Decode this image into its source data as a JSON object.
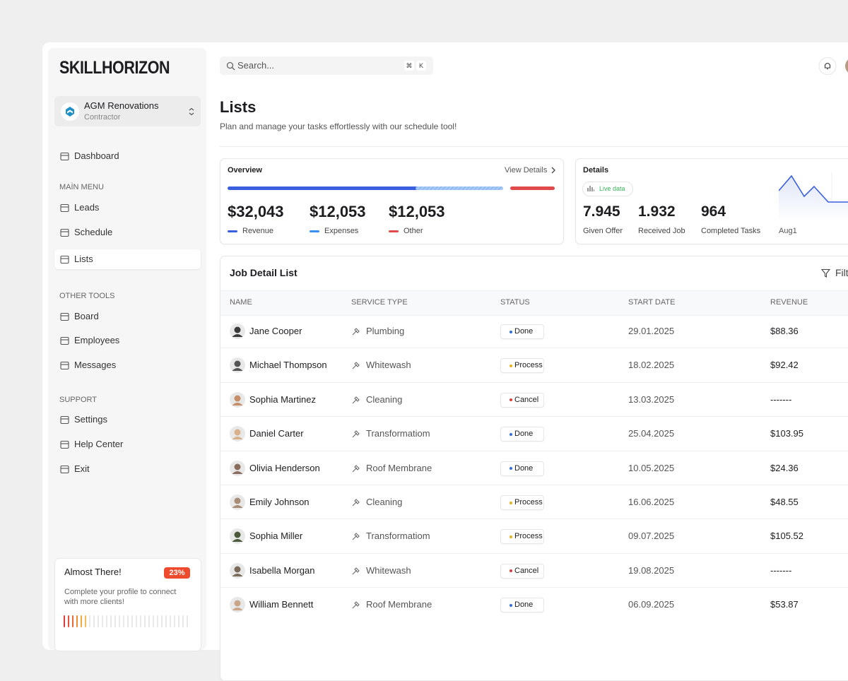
{
  "sidebar": {
    "logo": "SKILLHORIZON",
    "org": {
      "name": "AGM Renovations",
      "role": "Contractor"
    },
    "dashboard": "Dashboard",
    "sections": [
      {
        "title": "MAİN MENU",
        "items": [
          "Leads",
          "Schedule",
          "Lists"
        ]
      },
      {
        "title": "OTHER TOOLS",
        "items": [
          "Board",
          "Employees",
          "Messages"
        ]
      },
      {
        "title": "SUPPORT",
        "items": [
          "Settings",
          "Help Center",
          "Exit"
        ]
      }
    ],
    "promo": {
      "title": "Almost There!",
      "badge": "23%",
      "text_lines": [
        "Complete your profile to connect",
        "with more clients!"
      ]
    }
  },
  "search": {
    "placeholder": "Search...",
    "keys": [
      "⌘",
      "K"
    ]
  },
  "header": {
    "title": "Lists",
    "subtitle": "Plan and manage your tasks effortlessly with our schedule tool!"
  },
  "overview": {
    "title": "Overview",
    "link": "View Details",
    "stats": [
      {
        "value": "$32,043",
        "label": "Revenue",
        "color": "#3a5fde"
      },
      {
        "value": "$12,053",
        "label": "Expenses",
        "color": "#3a8ff0"
      },
      {
        "value": "$12,053",
        "label": "Other",
        "color": "#e04a4a"
      }
    ]
  },
  "details": {
    "title": "Details",
    "badge": "Live data",
    "stats": [
      {
        "value": "7.945",
        "label": "Given Offer"
      },
      {
        "value": "1.932",
        "label": "Received Job"
      },
      {
        "value": "964",
        "label": "Completed Tasks"
      }
    ],
    "chart_label": "Aug1"
  },
  "table": {
    "title": "Job Detail List",
    "filter": "Filter",
    "columns": [
      "NAME",
      "SERVICE TYPE",
      "STATUS",
      "START DATE",
      "REVENUE"
    ],
    "rows": [
      {
        "name": "Jane Cooper",
        "service": "Plumbing",
        "status": {
          "label": "Done",
          "color": "#2f6fe4"
        },
        "date": "29.01.2025",
        "revenue": "$88.36"
      },
      {
        "name": "Michael Thompson",
        "service": "Whitewash",
        "status": {
          "label": "Process",
          "color": "#e8b21c"
        },
        "date": "18.02.2025",
        "revenue": "$92.42"
      },
      {
        "name": "Sophia Martinez",
        "service": "Cleaning",
        "status": {
          "label": "Cancel",
          "color": "#e03a3a"
        },
        "date": "13.03.2025",
        "revenue": "-------"
      },
      {
        "name": "Daniel Carter",
        "service": "Transformatiom",
        "status": {
          "label": "Done",
          "color": "#2f6fe4"
        },
        "date": "25.04.2025",
        "revenue": "$103.95"
      },
      {
        "name": "Olivia Henderson",
        "service": "Roof Membrane",
        "status": {
          "label": "Done",
          "color": "#2f6fe4"
        },
        "date": "10.05.2025",
        "revenue": "$24.36"
      },
      {
        "name": "Emily Johnson",
        "service": "Cleaning",
        "status": {
          "label": "Process",
          "color": "#e8b21c"
        },
        "date": "16.06.2025",
        "revenue": "$48.55"
      },
      {
        "name": "Sophia Miller",
        "service": "Transformatiom",
        "status": {
          "label": "Process",
          "color": "#e8b21c"
        },
        "date": "09.07.2025",
        "revenue": "$105.52"
      },
      {
        "name": "Isabella Morgan",
        "service": "Whitewash",
        "status": {
          "label": "Cancel",
          "color": "#e03a3a"
        },
        "date": "19.08.2025",
        "revenue": "-------"
      },
      {
        "name": "William Bennett",
        "service": "Roof Membrane",
        "status": {
          "label": "Done",
          "color": "#2f6fe4"
        },
        "date": "06.09.2025",
        "revenue": "$53.87"
      }
    ]
  }
}
